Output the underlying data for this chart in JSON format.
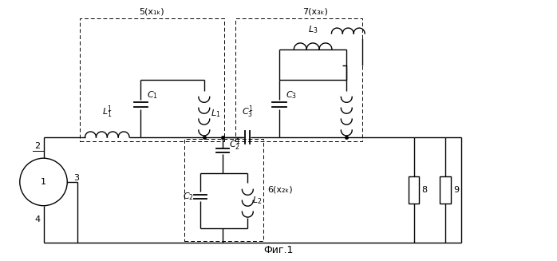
{
  "title": "Фиг.1",
  "label_5": "5(x₁ₖ)",
  "label_6": "6(x₂ₖ)",
  "label_7": "7(x₃ₖ)",
  "bg_color": "#ffffff",
  "line_color": "#000000"
}
